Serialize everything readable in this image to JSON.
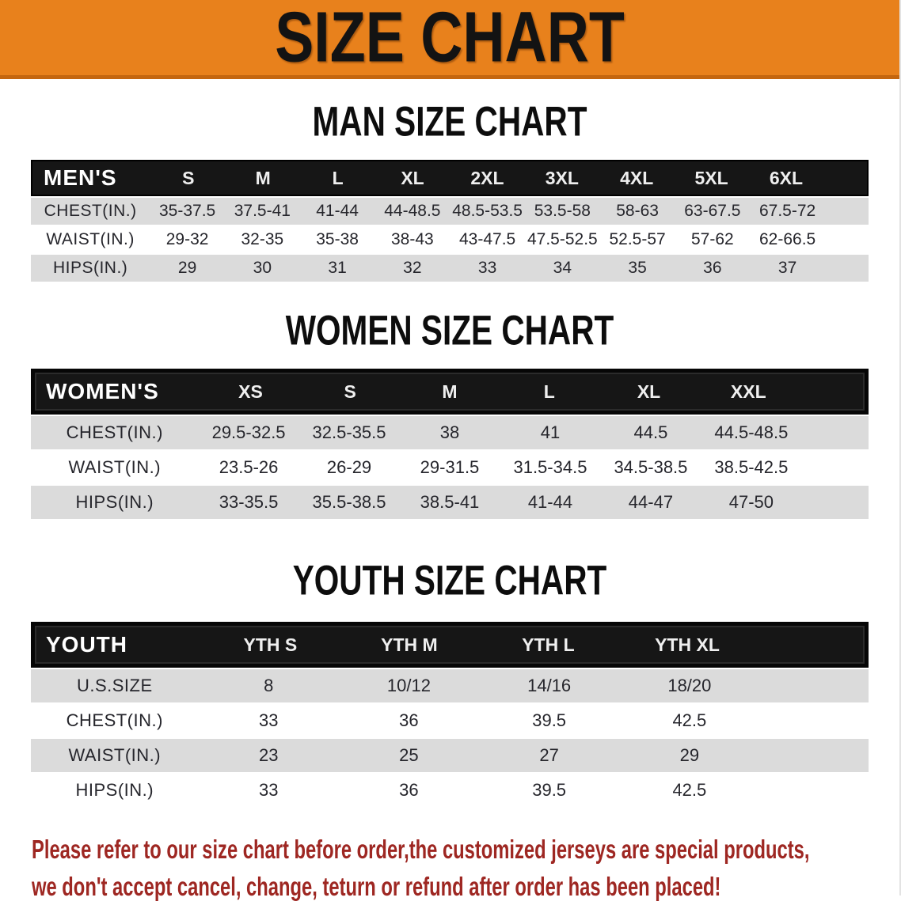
{
  "banner": {
    "title": "SIZE CHART"
  },
  "sections": [
    {
      "id": "men",
      "heading": "MAN SIZE CHART",
      "framed": false,
      "table": {
        "header_label": "MEN'S",
        "columns": [
          "S",
          "M",
          "L",
          "XL",
          "2XL",
          "3XL",
          "4XL",
          "5XL",
          "6XL"
        ],
        "rows": [
          {
            "label": "CHEST(IN.)",
            "values": [
              "35-37.5",
              "37.5-41",
              "41-44",
              "44-48.5",
              "48.5-53.5",
              "53.5-58",
              "58-63",
              "63-67.5",
              "67.5-72"
            ]
          },
          {
            "label": "WAIST(IN.)",
            "values": [
              "29-32",
              "32-35",
              "35-38",
              "38-43",
              "43-47.5",
              "47.5-52.5",
              "52.5-57",
              "57-62",
              "62-66.5"
            ]
          },
          {
            "label": "HIPS(IN.)",
            "values": [
              "29",
              "30",
              "31",
              "32",
              "33",
              "34",
              "35",
              "36",
              "37"
            ]
          }
        ]
      }
    },
    {
      "id": "women",
      "heading": "WOMEN SIZE CHART",
      "framed": true,
      "table": {
        "header_label": "WOMEN'S",
        "columns": [
          "XS",
          "S",
          "M",
          "L",
          "XL",
          "XXL"
        ],
        "rows": [
          {
            "label": "CHEST(IN.)",
            "values": [
              "29.5-32.5",
              "32.5-35.5",
              "38",
              "41",
              "44.5",
              "44.5-48.5"
            ]
          },
          {
            "label": "WAIST(IN.)",
            "values": [
              "23.5-26",
              "26-29",
              "29-31.5",
              "31.5-34.5",
              "34.5-38.5",
              "38.5-42.5"
            ]
          },
          {
            "label": "HIPS(IN.)",
            "values": [
              "33-35.5",
              "35.5-38.5",
              "38.5-41",
              "41-44",
              "44-47",
              "47-50"
            ]
          }
        ]
      }
    },
    {
      "id": "youth",
      "heading": "YOUTH SIZE CHART",
      "framed": true,
      "table": {
        "header_label": "YOUTH",
        "columns": [
          "YTH S",
          "YTH M",
          "YTH L",
          "YTH XL"
        ],
        "rows": [
          {
            "label": "U.S.SIZE",
            "values": [
              "8",
              "10/12",
              "14/16",
              "18/20"
            ]
          },
          {
            "label": "CHEST(IN.)",
            "values": [
              "33",
              "36",
              "39.5",
              "42.5"
            ]
          },
          {
            "label": "WAIST(IN.)",
            "values": [
              "23",
              "25",
              "27",
              "29"
            ]
          },
          {
            "label": "HIPS(IN.)",
            "values": [
              "33",
              "36",
              "39.5",
              "42.5"
            ]
          }
        ]
      }
    }
  ],
  "disclaimer": {
    "line1": "Please refer to our size chart before order,the customized jerseys are special products,",
    "line2": "we don't accept cancel, change, teturn or refund after order has been placed!"
  },
  "colors": {
    "banner_bg": "#E8811C",
    "banner_border": "#C4660F",
    "table_header_bg": "#161616",
    "row_stripe": "#DBDBDB",
    "text_dark": "#26262C",
    "disclaimer_red": "#9E2722"
  }
}
